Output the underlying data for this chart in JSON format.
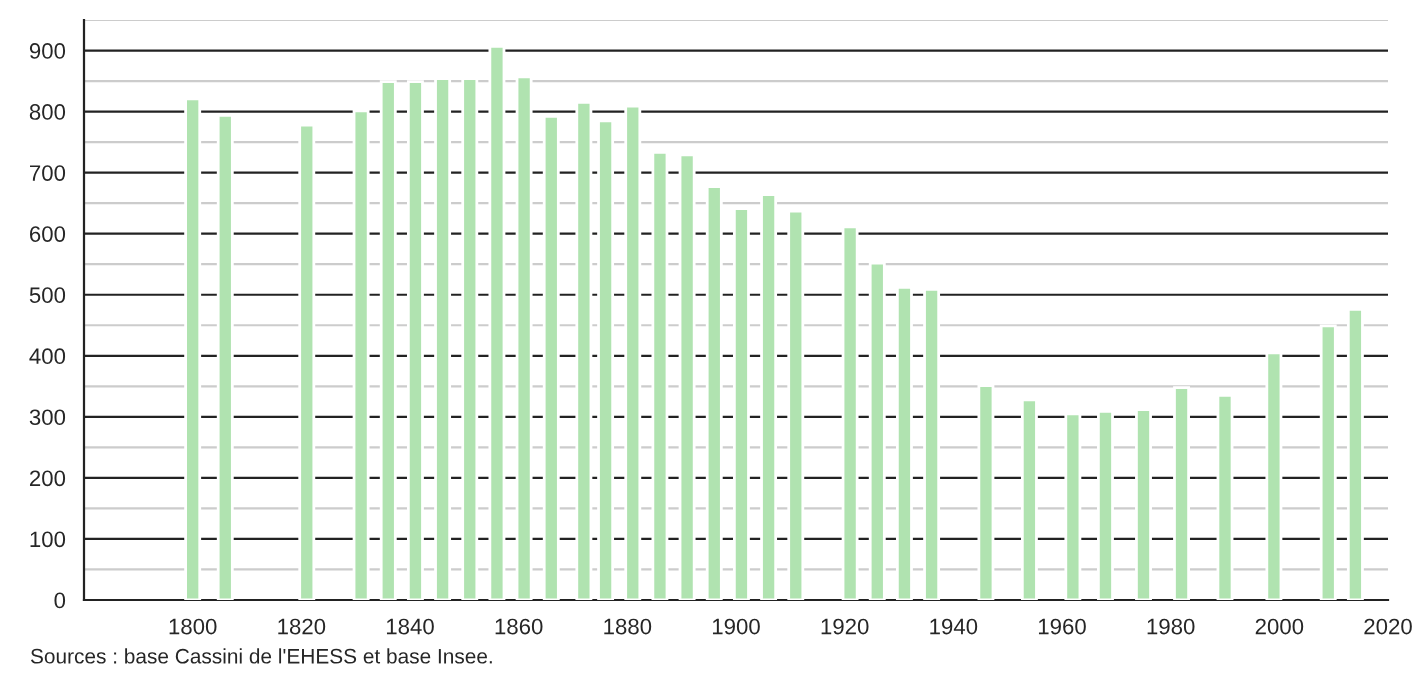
{
  "chart_data": {
    "type": "bar",
    "x": [
      1800,
      1806,
      1821,
      1831,
      1836,
      1841,
      1846,
      1851,
      1856,
      1861,
      1866,
      1872,
      1876,
      1881,
      1886,
      1891,
      1896,
      1901,
      1906,
      1911,
      1921,
      1926,
      1931,
      1936,
      1946,
      1954,
      1962,
      1968,
      1975,
      1982,
      1990,
      1999,
      2009,
      2014
    ],
    "values": [
      821,
      794,
      778,
      801,
      849,
      849,
      854,
      854,
      907,
      857,
      792,
      815,
      785,
      809,
      733,
      729,
      677,
      641,
      664,
      637,
      611,
      552,
      512,
      509,
      351,
      328,
      305,
      309,
      312,
      348,
      335,
      405,
      449,
      476
    ],
    "color": "#b0e3b0",
    "xlim": [
      1780,
      2020
    ],
    "xticks": [
      1800,
      1820,
      1840,
      1860,
      1880,
      1900,
      1920,
      1940,
      1960,
      1980,
      2000,
      2020
    ],
    "ylim": [
      0,
      950
    ],
    "yticks": [
      0,
      100,
      200,
      300,
      400,
      500,
      600,
      700,
      800,
      900
    ],
    "grid": "y",
    "annotations": [
      "Sources : base Cassini de l'EHESS et base Insee."
    ]
  }
}
